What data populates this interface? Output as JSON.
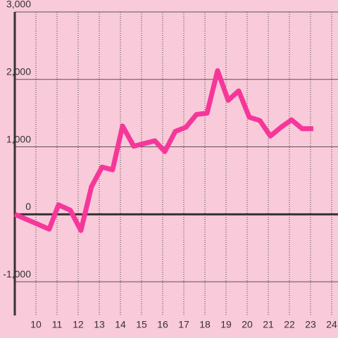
{
  "chart_data": {
    "type": "line",
    "x": [
      9,
      10.63,
      11.07,
      11.63,
      12.13,
      12.63,
      13.13,
      13.63,
      14.1,
      14.63,
      15.13,
      15.63,
      16.1,
      16.6,
      17.1,
      17.6,
      18.1,
      18.6,
      19.1,
      19.6,
      20.1,
      20.6,
      21.1,
      21.6,
      22.1,
      22.6,
      23.13
    ],
    "series": [
      {
        "color": "#f5379a",
        "values": [
          0,
          -220,
          140,
          60,
          -240,
          410,
          700,
          660,
          1310,
          1010,
          1050,
          1090,
          930,
          1230,
          1290,
          1480,
          1500,
          2130,
          1690,
          1830,
          1440,
          1390,
          1160,
          1290,
          1400,
          1270,
          1270
        ]
      }
    ],
    "xlim": [
      9,
      24.3
    ],
    "xticks": [
      10,
      11,
      12,
      13,
      14,
      15,
      16,
      17,
      18,
      19,
      20,
      21,
      22,
      23,
      24
    ],
    "ylim": [
      -1500,
      3000
    ],
    "yticks": [
      {
        "value": -1000,
        "label": "-1,000"
      },
      0,
      {
        "value": 1000,
        "label": "1,000"
      },
      {
        "value": 2000,
        "label": "2,000"
      },
      {
        "value": 3000,
        "label": "3,000"
      }
    ],
    "grid": true
  }
}
